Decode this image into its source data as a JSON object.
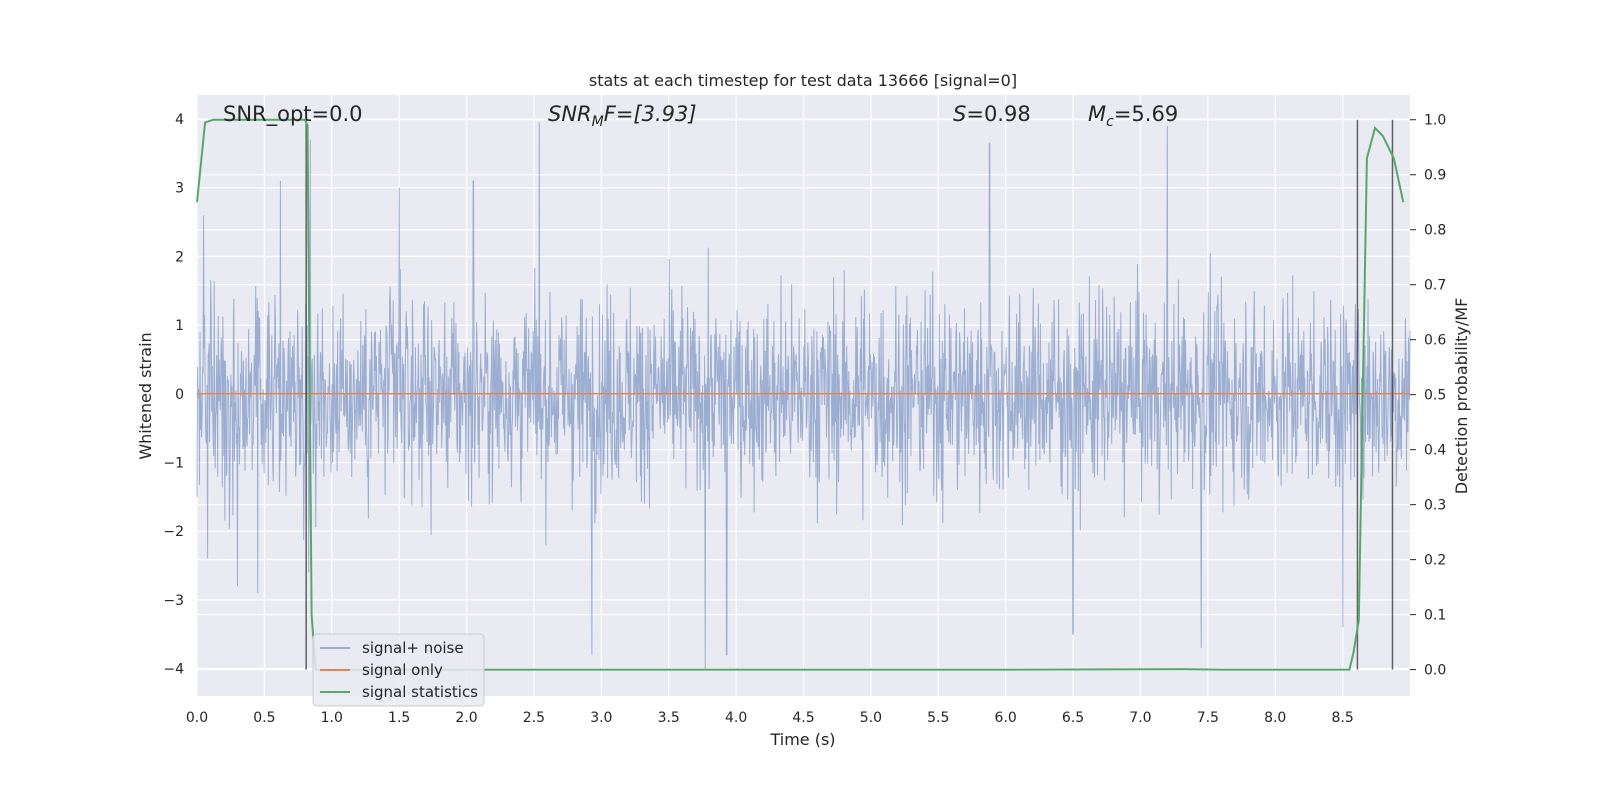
{
  "chart_data": {
    "type": "line",
    "title": "stats at each timestep for test data 13666 [signal=0]",
    "xlabel": "Time (s)",
    "ylabel": "Whitened strain",
    "y2label": "Detection probability/MF",
    "xlim": [
      0,
      9
    ],
    "ylim": [
      -4.4,
      4.35
    ],
    "y2lim": [
      -0.048,
      1.045
    ],
    "xticks": [
      "0.0",
      "0.5",
      "1.0",
      "1.5",
      "2.0",
      "2.5",
      "3.0",
      "3.5",
      "4.0",
      "4.5",
      "5.0",
      "5.5",
      "6.0",
      "6.5",
      "7.0",
      "7.5",
      "8.0",
      "8.5"
    ],
    "yticks": [
      "4",
      "3",
      "2",
      "1",
      "0",
      "−1",
      "−2",
      "−3",
      "−4"
    ],
    "y2ticks": [
      "0.0",
      "0.1",
      "0.2",
      "0.3",
      "0.4",
      "0.5",
      "0.6",
      "0.7",
      "0.8",
      "0.9",
      "1.0"
    ],
    "grid": true,
    "legend_position": "lower-left",
    "annotations": {
      "snr_opt": "SNR_opt=0.0",
      "snr_mf_base": "SNR",
      "snr_mf_sub": "M",
      "snr_mf_rest": "F=[3.93]",
      "s_base": "S",
      "s_rest": "=0.98",
      "mc_base": "M",
      "mc_sub": "c",
      "mc_rest": "=5.69"
    },
    "series": [
      {
        "name": "signal+ noise",
        "color": "#4c72b0",
        "axis": "left",
        "description_points": [
          [
            0.0,
            -1.5
          ],
          [
            0.05,
            2.6
          ],
          [
            0.08,
            -2.4
          ],
          [
            0.3,
            -2.8
          ],
          [
            0.45,
            -2.9
          ],
          [
            0.62,
            3.1
          ],
          [
            0.83,
            -2.6
          ],
          [
            0.84,
            3.7
          ],
          [
            1.5,
            3.0
          ],
          [
            2.05,
            3.1
          ],
          [
            2.54,
            3.95
          ],
          [
            2.93,
            -3.8
          ],
          [
            3.77,
            -4.0
          ],
          [
            3.93,
            -3.8
          ],
          [
            5.88,
            3.65
          ],
          [
            6.5,
            -3.5
          ],
          [
            7.2,
            3.9
          ],
          [
            7.45,
            -3.7
          ],
          [
            8.5,
            -3.4
          ]
        ]
      },
      {
        "name": "signal only",
        "color": "#dd8452",
        "axis": "left",
        "x": [
          0,
          9
        ],
        "y": [
          0,
          0
        ]
      },
      {
        "name": "signal statistics",
        "color": "#55a868",
        "axis": "right",
        "x": [
          0.0,
          0.06,
          0.12,
          0.3,
          0.5,
          0.7,
          0.8,
          0.82,
          0.85,
          0.88,
          0.95,
          2.0,
          4.0,
          6.0,
          7.3,
          7.6,
          8.0,
          8.4,
          8.55,
          8.58,
          8.62,
          8.68,
          8.74,
          8.8,
          8.88,
          8.95
        ],
        "y": [
          0.85,
          0.995,
          1.0,
          1.0,
          1.0,
          1.0,
          1.0,
          0.99,
          0.1,
          0.0,
          0.0,
          0.0,
          0.0,
          0.0,
          0.001,
          0.0,
          0.0,
          0.0,
          0.0,
          0.03,
          0.09,
          0.93,
          0.985,
          0.97,
          0.93,
          0.85
        ]
      }
    ],
    "vlines_x": [
      0.81,
      8.61,
      8.87
    ]
  }
}
